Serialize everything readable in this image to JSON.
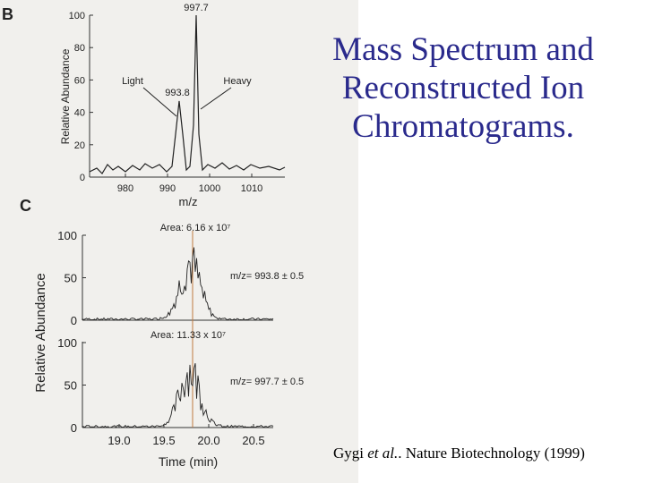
{
  "slide": {
    "title": "Mass Spectrum and Reconstructed Ion Chromatograms.",
    "citation": {
      "author": "Gygi",
      "etal": "et al.",
      "rest": ". Nature Biotechnology ",
      "year": "(1999)"
    },
    "figure": {
      "panel_b": {
        "label": "B",
        "y_label": "Relative Abundance",
        "x_label": "m/z",
        "yticks": [
          "0",
          "20",
          "40",
          "60",
          "80",
          "100"
        ],
        "xticks": [
          "980",
          "990",
          "1000",
          "1010"
        ],
        "peak_heavy": "997.7",
        "peak_light": "993.8",
        "light": "Light",
        "heavy": "Heavy"
      },
      "panel_c": {
        "label": "C",
        "y_label": "Relative Abundance",
        "x_label": "Time (min)",
        "top": {
          "area": "Area: 6.16 x 10⁷",
          "mz": "m/z= 993.8 ± 0.5",
          "yticks": [
            "0",
            "50",
            "100"
          ]
        },
        "bottom": {
          "area": "Area: 11.33 x 10⁷",
          "mz": "m/z= 997.7 ± 0.5",
          "yticks": [
            "0",
            "50",
            "100"
          ]
        },
        "xticks": [
          "19.0",
          "19.5",
          "20.0",
          "20.5"
        ]
      }
    }
  }
}
